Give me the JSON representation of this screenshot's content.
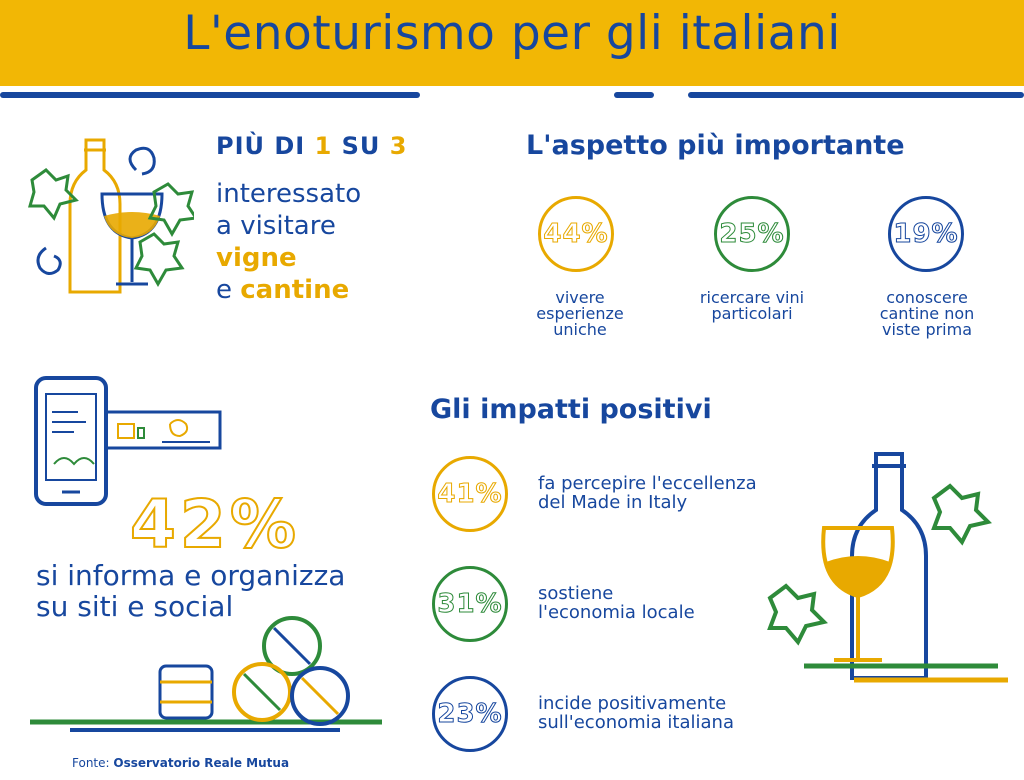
{
  "header": {
    "title": "L'enoturismo per gli italiani"
  },
  "stat1": {
    "prefix1": "PIÙ DI ",
    "num1": "1",
    "prefix2": " SU ",
    "num2": "3",
    "line1": "interessato",
    "line2": "a visitare",
    "line3": "vigne",
    "line4_a": "e ",
    "line4_b": "cantine"
  },
  "aspetto": {
    "title": "L'aspetto più importante",
    "items": [
      {
        "value": "44%",
        "caption": "vivere esperienze uniche",
        "color": "#e8a900"
      },
      {
        "value": "25%",
        "caption": "ricercare vini particolari",
        "color": "#2e8b3a"
      },
      {
        "value": "19%",
        "caption": "conoscere cantine non viste prima",
        "color": "#17479e"
      }
    ]
  },
  "online": {
    "value": "42%",
    "line1": "si informa e organizza",
    "line2": "su siti e social"
  },
  "impatti": {
    "title": "Gli impatti positivi",
    "items": [
      {
        "value": "41%",
        "line1": "fa percepire l'eccellenza",
        "line2": "del Made in Italy",
        "color": "#e8a900"
      },
      {
        "value": "31%",
        "line1": "sostiene",
        "line2": "l'economia locale",
        "color": "#2e8b3a"
      },
      {
        "value": "23%",
        "line1": "incide positivamente",
        "line2": "sull'economia italiana",
        "color": "#17479e"
      }
    ]
  },
  "footer": {
    "source_label": "Fonte: ",
    "source_name": "Osservatorio Reale Mutua"
  },
  "colors": {
    "blue": "#17479e",
    "gold": "#e8a900",
    "green": "#2e8b3a",
    "banner": "#f2b705"
  }
}
